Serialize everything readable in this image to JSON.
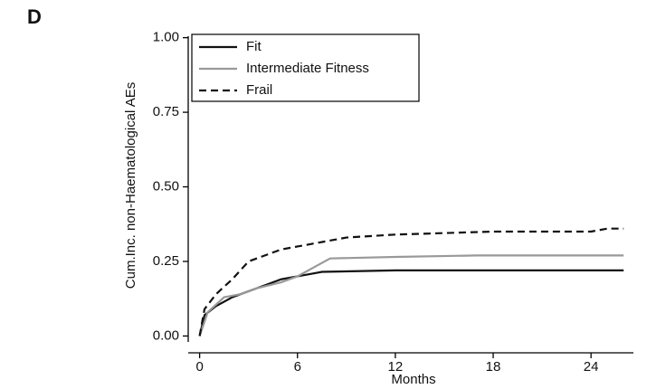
{
  "chart_data": {
    "type": "line",
    "panel_label": "D",
    "ylabel": "Cum.Inc. non-Haematological AEs",
    "xlabel": "Months",
    "xlim": [
      -0.7,
      26.6
    ],
    "xticks": [
      0,
      6,
      12,
      18,
      24
    ],
    "ylim": [
      -0.02,
      1.005
    ],
    "yticks": [
      {
        "value": 0,
        "label": "0.00"
      },
      {
        "value": 0.25,
        "label": "0.25"
      },
      {
        "value": 0.5,
        "label": "0.50"
      },
      {
        "value": 0.75,
        "label": "0.75"
      },
      {
        "value": 1,
        "label": "1.00"
      }
    ],
    "legend": "upper left",
    "series": [
      {
        "name": "Fit",
        "color": "#111111",
        "linestyle": "solid",
        "x": [
          0,
          0.3,
          1,
          2,
          3,
          4,
          5,
          6,
          7,
          7.5,
          12,
          26
        ],
        "values": [
          0,
          0.07,
          0.1,
          0.13,
          0.15,
          0.17,
          0.19,
          0.2,
          0.21,
          0.215,
          0.22,
          0.22
        ]
      },
      {
        "name": "Intermediate Fitness",
        "color": "#999999",
        "linestyle": "solid",
        "x": [
          0,
          0.5,
          1.5,
          2.5,
          3.5,
          5,
          6,
          7,
          8,
          12,
          17,
          26
        ],
        "values": [
          0,
          0.08,
          0.13,
          0.14,
          0.16,
          0.18,
          0.2,
          0.23,
          0.26,
          0.265,
          0.27,
          0.27
        ]
      },
      {
        "name": "Frail",
        "color": "#111111",
        "linestyle": "dashed",
        "x": [
          0,
          0.3,
          1,
          2,
          3,
          4,
          5,
          6,
          7,
          9,
          12,
          18,
          24,
          25,
          26
        ],
        "values": [
          0,
          0.09,
          0.14,
          0.19,
          0.25,
          0.27,
          0.29,
          0.3,
          0.31,
          0.33,
          0.34,
          0.35,
          0.35,
          0.36,
          0.36
        ]
      }
    ]
  }
}
